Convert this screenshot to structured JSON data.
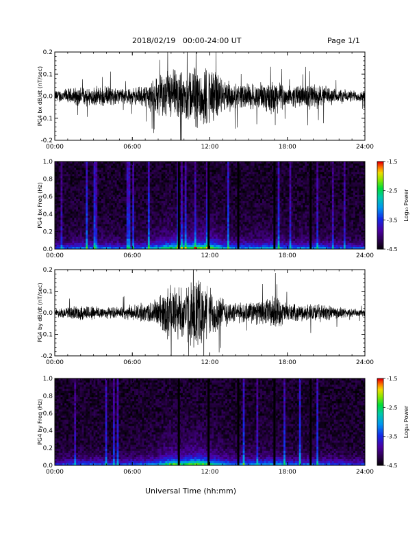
{
  "header": {
    "title": "2018/02/19   00:00-24:00 UT",
    "page_label": "Page 1/1"
  },
  "chart_data": [
    {
      "type": "line",
      "ylabel": "PG4  bx dB/dt (nT/sec)",
      "xlim": [
        0,
        24
      ],
      "ylim": [
        -0.2,
        0.2
      ],
      "x_ticks": [
        "00:00",
        "06:00",
        "12:00",
        "18:00",
        "24:00"
      ],
      "y_ticks": [
        "0.2",
        "0.1",
        "0.0",
        "-0.1",
        "-0.2"
      ],
      "envelope": {
        "hours": [
          0,
          1,
          2,
          3,
          4,
          5,
          6,
          7,
          8,
          9,
          10,
          11,
          12,
          13,
          14,
          15,
          16,
          17,
          18,
          19,
          20,
          21,
          22,
          23,
          24
        ],
        "amplitude": [
          0.03,
          0.04,
          0.05,
          0.05,
          0.05,
          0.04,
          0.04,
          0.06,
          0.1,
          0.14,
          0.12,
          0.17,
          0.16,
          0.09,
          0.06,
          0.07,
          0.07,
          0.09,
          0.05,
          0.06,
          0.07,
          0.05,
          0.04,
          0.03,
          0.03
        ]
      },
      "grid": false
    },
    {
      "type": "heatmap",
      "ylabel": "PG4  bx Freq (Hz)",
      "xlim": [
        0,
        24
      ],
      "ylim": [
        0.0,
        1.0
      ],
      "x_ticks": [
        "00:00",
        "06:00",
        "12:00",
        "18:00",
        "24:00"
      ],
      "y_ticks": [
        "1.0",
        "0.8",
        "0.6",
        "0.4",
        "0.2",
        "0.0"
      ],
      "colorbar": {
        "label": "Log₁₀ Power",
        "range": [
          -4.5,
          -1.5
        ],
        "ticks": [
          "-1.5",
          "-2.5",
          "-3.5",
          "-4.5"
        ]
      },
      "data_gaps_hours": [
        9.6,
        11.9,
        14.2,
        17.0,
        19.8
      ]
    },
    {
      "type": "line",
      "ylabel": "PG4  by dB/dt (nT/sec)",
      "xlim": [
        0,
        24
      ],
      "ylim": [
        -0.2,
        0.2
      ],
      "x_ticks": [
        "00:00",
        "06:00",
        "12:00",
        "18:00",
        "24:00"
      ],
      "y_ticks": [
        "0.2",
        "0.1",
        "0.0",
        "-0.1",
        "-0.2"
      ],
      "envelope": {
        "hours": [
          0,
          1,
          2,
          3,
          4,
          5,
          6,
          7,
          8,
          9,
          10,
          11,
          12,
          13,
          14,
          15,
          16,
          17,
          18,
          19,
          20,
          21,
          22,
          23,
          24
        ],
        "amplitude": [
          0.02,
          0.03,
          0.04,
          0.04,
          0.03,
          0.03,
          0.04,
          0.05,
          0.08,
          0.16,
          0.14,
          0.18,
          0.14,
          0.08,
          0.05,
          0.06,
          0.06,
          0.09,
          0.05,
          0.04,
          0.05,
          0.04,
          0.03,
          0.02,
          0.02
        ]
      },
      "grid": false
    },
    {
      "type": "heatmap",
      "ylabel": "PG4  by Freq (Hz)",
      "xlim": [
        0,
        24
      ],
      "ylim": [
        0.0,
        1.0
      ],
      "x_ticks": [
        "00:00",
        "06:00",
        "12:00",
        "18:00",
        "24:00"
      ],
      "y_ticks": [
        "1.0",
        "0.8",
        "0.6",
        "0.4",
        "0.2",
        "0.0"
      ],
      "colorbar": {
        "label": "Log₁₀ Power",
        "range": [
          -4.5,
          -1.5
        ],
        "ticks": [
          "-1.5",
          "-2.5",
          "-3.5",
          "-4.5"
        ]
      },
      "data_gaps_hours": [
        9.6,
        11.9,
        14.2,
        17.0,
        19.8
      ]
    }
  ],
  "xlabel": "Universal Time (hh:mm)",
  "colors": {
    "trace": "#000000",
    "background": "#ffffff"
  }
}
